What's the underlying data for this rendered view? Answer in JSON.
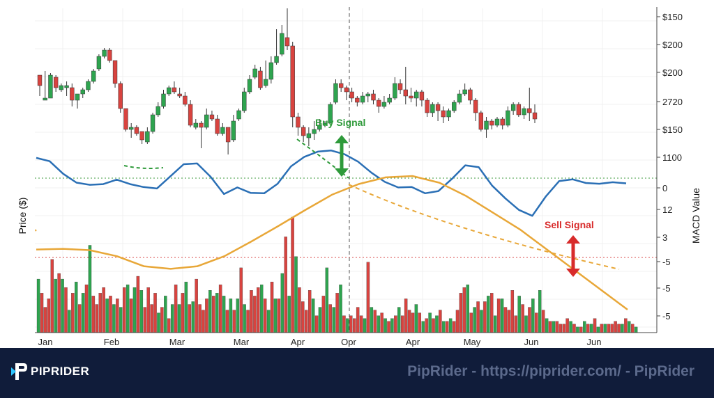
{
  "chart_data": {
    "type": "candlestick",
    "x_tick_labels": [
      "Jan",
      "Feb",
      "Mar",
      "Mar",
      "Apr",
      "Opr",
      "Apr",
      "May",
      "Jun",
      "Jun"
    ],
    "right_axis_labels": [
      "$150",
      "$200",
      "$200",
      "2720",
      "$150",
      "1100",
      "0",
      "12",
      "3",
      "-5",
      "-5",
      "-5"
    ],
    "left_axis_label": "Price ($)",
    "right_axis_label": "MACD Value",
    "annotations": {
      "buy_signal": "Buy Signal",
      "sell_signal": "Sell Signal"
    },
    "price_candles_ohlc": [
      [
        28,
        23,
        28,
        18
      ],
      [
        16,
        17,
        30,
        16
      ],
      [
        17,
        28,
        29,
        17
      ],
      [
        27,
        22,
        28,
        20
      ],
      [
        21,
        23,
        24,
        20
      ],
      [
        22,
        23,
        25,
        18
      ],
      [
        22,
        16,
        24,
        13
      ],
      [
        16,
        19,
        19,
        12
      ],
      [
        19,
        21,
        22,
        17
      ],
      [
        21,
        25,
        26,
        20
      ],
      [
        25,
        30,
        31,
        24
      ],
      [
        31,
        37,
        38,
        30
      ],
      [
        37,
        40,
        41,
        36
      ],
      [
        40,
        35,
        41,
        34
      ],
      [
        35,
        24,
        35,
        22
      ],
      [
        24,
        12,
        25,
        10
      ],
      [
        12,
        2,
        3,
        1
      ],
      [
        2,
        3,
        5,
        -2
      ],
      [
        3,
        0,
        4,
        -1
      ],
      [
        1,
        -3,
        -1,
        -5
      ],
      [
        -4,
        1,
        3,
        -5
      ],
      [
        1,
        9,
        10,
        0
      ],
      [
        9,
        13,
        15,
        8
      ],
      [
        13,
        19,
        21,
        12
      ],
      [
        19,
        22,
        23,
        18
      ],
      [
        22,
        20,
        25,
        19
      ],
      [
        19,
        18,
        22,
        17
      ],
      [
        18,
        14,
        20,
        13
      ],
      [
        14,
        4,
        16,
        3
      ],
      [
        3,
        5,
        7,
        2
      ],
      [
        5,
        3,
        6,
        -7
      ],
      [
        3,
        9,
        12,
        2
      ],
      [
        9,
        7,
        11,
        6
      ],
      [
        7,
        0,
        9,
        -1
      ],
      [
        0,
        3,
        5,
        -1
      ],
      [
        3,
        -4,
        -1,
        -10
      ],
      [
        -3,
        6,
        9,
        -4
      ],
      [
        7,
        11,
        12,
        6
      ],
      [
        11,
        20,
        22,
        10
      ],
      [
        20,
        26,
        28,
        19
      ],
      [
        27,
        31,
        33,
        26
      ],
      [
        30,
        22,
        32,
        21
      ],
      [
        23,
        26,
        35,
        22
      ],
      [
        26,
        34,
        37,
        24
      ],
      [
        34,
        37,
        50,
        33
      ],
      [
        38,
        48,
        52,
        37
      ],
      [
        46,
        42,
        60,
        40
      ],
      [
        42,
        8,
        44,
        3
      ],
      [
        8,
        3,
        10,
        -1
      ],
      [
        3,
        -1,
        4,
        -4
      ],
      [
        -2,
        0,
        3,
        -6
      ],
      [
        0,
        2,
        6,
        -3
      ],
      [
        2,
        4,
        7,
        1
      ],
      [
        4,
        5,
        6,
        3
      ],
      [
        5,
        14,
        15,
        5
      ],
      [
        15,
        24,
        26,
        14
      ],
      [
        24,
        22,
        26,
        20
      ],
      [
        22,
        20,
        23,
        16
      ],
      [
        20,
        17,
        22,
        15
      ],
      [
        17,
        15,
        18,
        13
      ],
      [
        15,
        18,
        20,
        14
      ],
      [
        18,
        19,
        20,
        15
      ],
      [
        19,
        16,
        21,
        14
      ],
      [
        16,
        13,
        17,
        10
      ],
      [
        13,
        15,
        18,
        12
      ],
      [
        15,
        17,
        19,
        14
      ],
      [
        17,
        24,
        27,
        16
      ],
      [
        24,
        21,
        26,
        19
      ],
      [
        21,
        18,
        32,
        14
      ],
      [
        18,
        17,
        22,
        15
      ],
      [
        17,
        20,
        21,
        13
      ],
      [
        20,
        16,
        21,
        13
      ],
      [
        16,
        10,
        17,
        8
      ],
      [
        10,
        14,
        15,
        8
      ],
      [
        14,
        11,
        15,
        6
      ],
      [
        11,
        8,
        13,
        5
      ],
      [
        8,
        11,
        12,
        6
      ],
      [
        11,
        15,
        16,
        10
      ],
      [
        15,
        19,
        21,
        14
      ],
      [
        19,
        21,
        24,
        18
      ],
      [
        21,
        16,
        22,
        14
      ],
      [
        16,
        10,
        17,
        6
      ],
      [
        10,
        2,
        11,
        1
      ],
      [
        2,
        6,
        8,
        -2
      ],
      [
        6,
        4,
        7,
        2
      ],
      [
        4,
        7,
        8,
        3
      ],
      [
        7,
        4,
        8,
        2
      ],
      [
        4,
        11,
        13,
        3
      ],
      [
        11,
        14,
        15,
        9
      ],
      [
        14,
        9,
        15,
        8
      ],
      [
        9,
        12,
        13,
        7
      ],
      [
        12,
        10,
        22,
        6
      ],
      [
        10,
        7,
        14,
        5
      ]
    ],
    "macd_line": [
      0.85,
      0.76,
      0.42,
      0.18,
      0.12,
      0.14,
      0.26,
      0.14,
      0.06,
      0.02,
      0.35,
      0.68,
      0.7,
      0.34,
      -0.13,
      0.05,
      -0.1,
      -0.11,
      0.15,
      0.62,
      0.88,
      1.02,
      1.05,
      0.95,
      0.75,
      0.45,
      0.2,
      0.05,
      0.06,
      -0.11,
      -0.05,
      0.28,
      0.65,
      0.6,
      0.1,
      -0.25,
      -0.56,
      -0.72,
      -0.2,
      0.22,
      0.27,
      0.17,
      0.15,
      0.19,
      0.16
    ],
    "signal_line": [
      -0.35,
      -0.34,
      -0.36,
      -0.45,
      -0.6,
      -0.64,
      -0.6,
      -0.45,
      -0.23,
      0,
      0.24,
      0.47,
      0.63,
      0.73,
      0.75,
      0.65,
      0.45,
      0.2,
      -0.05,
      -0.35,
      -0.65,
      -0.95,
      -1.25
    ],
    "volume": [
      19,
      14,
      9,
      12,
      26,
      19,
      21,
      19,
      16,
      8,
      14,
      18,
      10,
      14,
      17,
      31,
      13,
      10,
      14,
      16,
      12,
      13,
      10,
      12,
      9,
      16,
      17,
      12,
      16,
      20,
      15,
      9,
      16,
      10,
      14,
      7,
      9,
      13,
      5,
      10,
      17,
      10,
      14,
      18,
      10,
      11,
      19,
      10,
      8,
      12,
      15,
      13,
      14,
      17,
      13,
      8,
      12,
      8,
      12,
      23,
      10,
      8,
      15,
      13,
      16,
      17,
      12,
      8,
      18,
      12,
      12,
      21,
      34,
      13,
      41,
      27,
      16,
      11,
      8,
      15,
      12,
      6,
      9,
      13,
      23,
      10,
      9,
      14,
      17,
      6,
      5,
      6,
      5,
      9,
      6,
      5,
      25,
      9,
      8,
      6,
      7,
      5,
      4,
      5,
      6,
      9,
      6,
      12,
      8,
      7,
      10,
      7,
      4,
      5,
      7,
      5,
      6,
      8,
      4,
      4,
      5,
      4,
      8,
      14,
      16,
      17,
      7,
      9,
      11,
      8,
      11,
      13,
      14,
      6,
      12,
      12,
      9,
      8,
      15,
      6,
      13,
      10,
      6,
      9,
      12,
      7,
      15,
      8,
      5,
      4,
      4,
      4,
      3,
      3,
      5,
      4,
      3,
      2,
      2,
      4,
      3,
      3,
      5,
      2,
      3,
      3,
      3,
      3,
      4,
      3,
      3,
      5,
      4,
      3,
      2
    ],
    "buy_signal_marker": "Apr–Opr (near 1100 level)",
    "sell_signal_marker": "Jun (near -5 level)"
  },
  "colors": {
    "bull": "#2ea44f",
    "bear": "#d8433f",
    "macd": "#2a6fb5",
    "signal": "#e8a738",
    "buy": "#2e9a3a",
    "sell": "#d82b2b",
    "footer_bg": "#101c3a"
  },
  "footer": {
    "brand": "PIPRIDER",
    "watermark": "PipRider - https://piprider.com/ - PipRider"
  },
  "icons": {
    "logo": "piprider-logo-icon"
  }
}
